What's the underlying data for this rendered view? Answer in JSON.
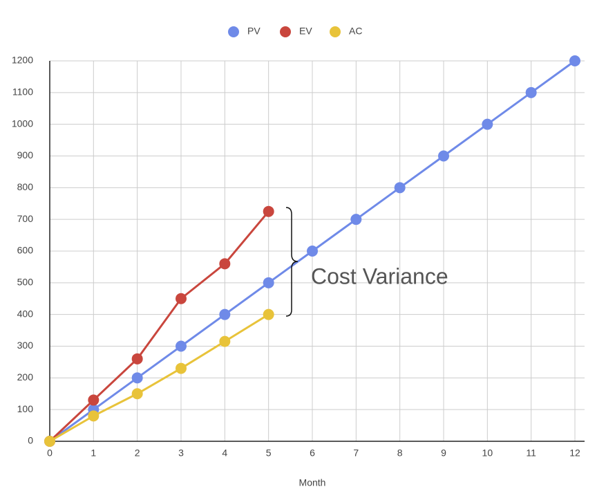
{
  "chart_data": {
    "type": "line",
    "x": [
      0,
      1,
      2,
      3,
      4,
      5,
      6,
      7,
      8,
      9,
      10,
      11,
      12
    ],
    "series": [
      {
        "name": "PV",
        "color": "#6f8ae8",
        "values": [
          0,
          100,
          200,
          300,
          400,
          500,
          600,
          700,
          800,
          900,
          1000,
          1100,
          1200
        ]
      },
      {
        "name": "EV",
        "color": "#c9463d",
        "values": [
          0,
          130,
          260,
          450,
          560,
          725,
          null,
          null,
          null,
          null,
          null,
          null,
          null
        ]
      },
      {
        "name": "AC",
        "color": "#e8c33a",
        "values": [
          0,
          80,
          150,
          230,
          315,
          400,
          null,
          null,
          null,
          null,
          null,
          null,
          null
        ]
      }
    ],
    "xlabel": "Month",
    "xlim": [
      0,
      12
    ],
    "xticks": [
      0,
      1,
      2,
      3,
      4,
      5,
      6,
      7,
      8,
      9,
      10,
      11,
      12
    ],
    "ylim": [
      0,
      1200
    ],
    "yticks": [
      0,
      100,
      200,
      300,
      400,
      500,
      600,
      700,
      800,
      900,
      1000,
      1100,
      1200
    ],
    "grid": true,
    "legend": "top",
    "annotation": "Cost Variance"
  }
}
